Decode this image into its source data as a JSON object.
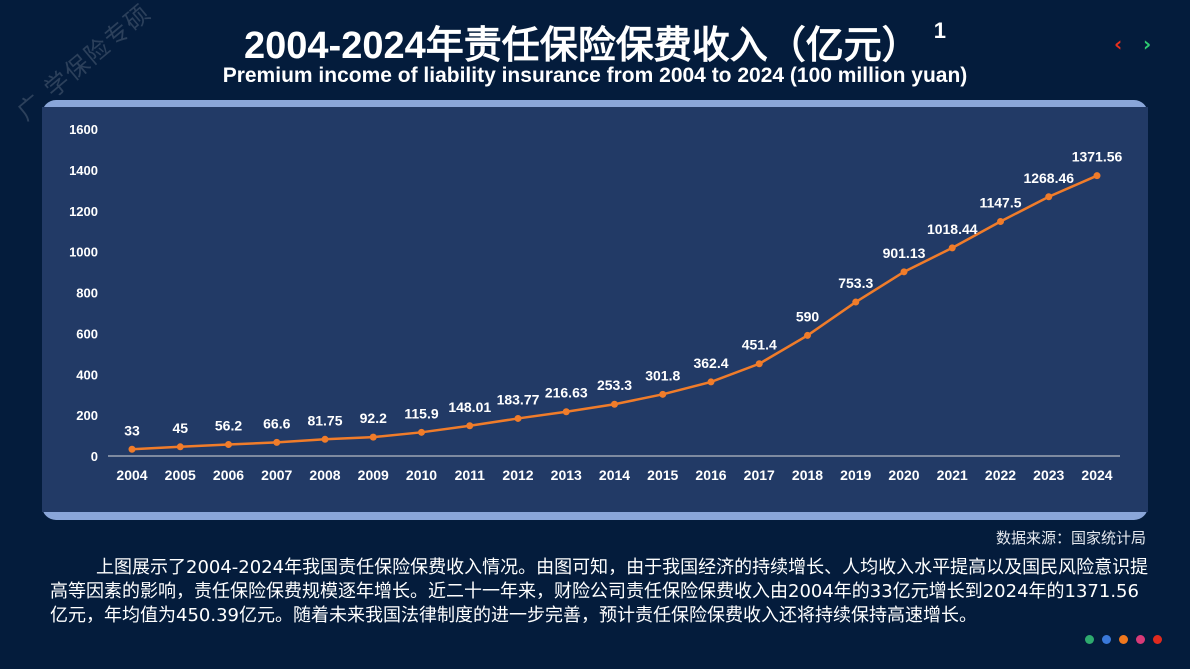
{
  "watermark": "广 学保险专硕",
  "header": {
    "title": "2004-2024年责任保险保费收入（亿元）",
    "footnote": "1",
    "subtitle": "Premium income of liability insurance from 2004 to 2024 (100 million yuan)",
    "prev": "‹",
    "next": "›"
  },
  "colors": {
    "background": "#041c3c",
    "panel": "#223a66",
    "line": "#f07c2a",
    "prev": "#e8301e",
    "next": "#2ecc71"
  },
  "chart_data": {
    "type": "line",
    "categories": [
      "2004",
      "2005",
      "2006",
      "2007",
      "2008",
      "2009",
      "2010",
      "2011",
      "2012",
      "2013",
      "2014",
      "2015",
      "2016",
      "2017",
      "2018",
      "2019",
      "2020",
      "2021",
      "2022",
      "2023",
      "2024"
    ],
    "values": [
      33,
      45,
      56.2,
      66.6,
      81.75,
      92.2,
      115.9,
      148.01,
      183.77,
      216.63,
      253.3,
      301.8,
      362.4,
      451.4,
      590,
      753.3,
      901.13,
      1018.44,
      1147.5,
      1268.46,
      1371.56
    ],
    "labels": [
      "33",
      "45",
      "56.2",
      "66.6",
      "81.75",
      "92.2",
      "115.9",
      "148.01",
      "183.77",
      "216.63",
      "253.3",
      "301.8",
      "362.4",
      "451.4",
      "590",
      "753.3",
      "901.13",
      "1018.44",
      "1147.5",
      "1268.46",
      "1371.56"
    ],
    "yticks": [
      "0",
      "200",
      "400",
      "600",
      "800",
      "1000",
      "1200",
      "1400",
      "1600"
    ],
    "ylim": [
      0,
      1600
    ],
    "grid": false,
    "legend": "none"
  },
  "source": "数据来源：国家统计局",
  "paragraph": "上图展示了2004-2024年我国责任保险保费收入情况。由图可知，由于我国经济的持续增长、人均收入水平提高以及国民风险意识提高等因素的影响，责任保险保费规模逐年增长。近二十一年来，财险公司责任保险保费收入由2004年的33亿元增长到2024年的1371.56亿元，年均值为450.39亿元。随着未来我国法律制度的进一步完善，预计责任保险保费收入还将持续保持高速增长。",
  "dots": [
    "#2eaa6e",
    "#3a78d8",
    "#f0781e",
    "#d83a78",
    "#e02a1e"
  ]
}
